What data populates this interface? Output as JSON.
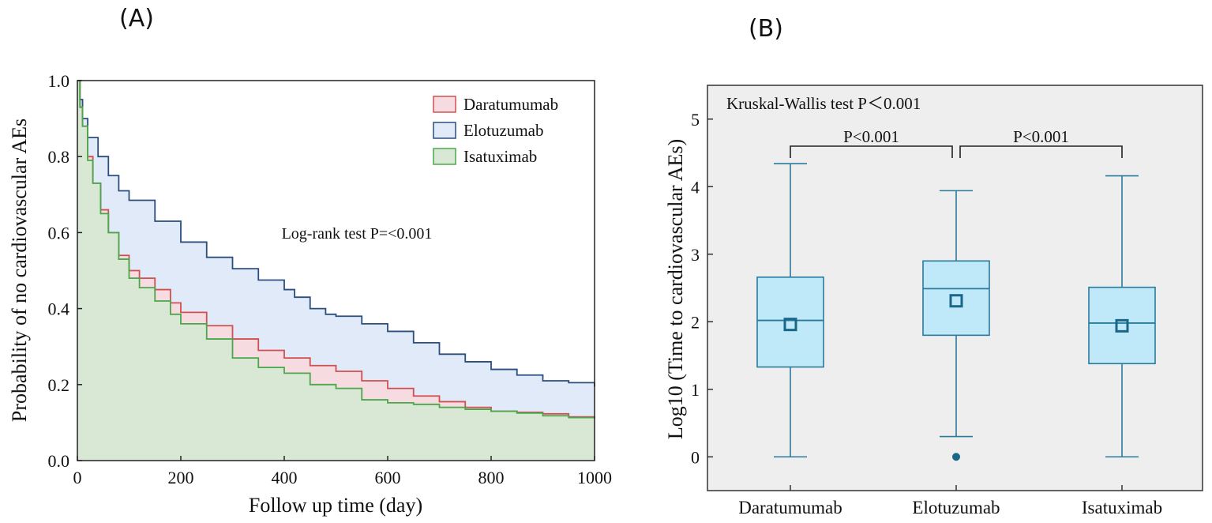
{
  "panels": {
    "a_label": "(A)",
    "b_label": "(B)"
  },
  "chart_data": [
    {
      "type": "line",
      "subtype": "kaplan-meier",
      "xlabel": "Follow up time (day)",
      "ylabel": "Probability of no cardiovascular AEs",
      "xlim": [
        0,
        1000
      ],
      "ylim": [
        0,
        1.0
      ],
      "xticks": [
        "0",
        "200",
        "400",
        "600",
        "800",
        "1000"
      ],
      "yticks": [
        "0.0",
        "0.2",
        "0.4",
        "0.6",
        "0.8",
        "1.0"
      ],
      "annotation": "Log-rank test P=<0.001",
      "legend_position": "top-right",
      "series": [
        {
          "name": "Daratumumab",
          "color": "#d05050",
          "fill": "#f6dbe0",
          "x": [
            0,
            5,
            10,
            20,
            30,
            45,
            60,
            80,
            100,
            120,
            150,
            180,
            200,
            250,
            300,
            350,
            400,
            450,
            500,
            550,
            600,
            650,
            700,
            750,
            800,
            850,
            900,
            950,
            1000
          ],
          "y": [
            1.0,
            0.93,
            0.88,
            0.8,
            0.73,
            0.66,
            0.6,
            0.54,
            0.5,
            0.48,
            0.45,
            0.415,
            0.39,
            0.355,
            0.32,
            0.29,
            0.27,
            0.25,
            0.235,
            0.21,
            0.19,
            0.17,
            0.155,
            0.14,
            0.13,
            0.127,
            0.123,
            0.115,
            0.112
          ]
        },
        {
          "name": "Elotuzumab",
          "color": "#2a4e7e",
          "fill": "#e0eaf8",
          "x": [
            0,
            5,
            10,
            20,
            40,
            60,
            80,
            100,
            150,
            200,
            250,
            300,
            350,
            400,
            420,
            450,
            480,
            500,
            550,
            600,
            650,
            700,
            750,
            800,
            850,
            900,
            950,
            1000
          ],
          "y": [
            1.0,
            0.95,
            0.9,
            0.85,
            0.8,
            0.75,
            0.71,
            0.685,
            0.63,
            0.575,
            0.535,
            0.505,
            0.475,
            0.45,
            0.43,
            0.4,
            0.385,
            0.38,
            0.36,
            0.34,
            0.31,
            0.28,
            0.26,
            0.24,
            0.225,
            0.21,
            0.205,
            0.195
          ]
        },
        {
          "name": "Isatuximab",
          "color": "#4aa84a",
          "fill": "#d8e8d5",
          "x": [
            0,
            5,
            10,
            20,
            30,
            45,
            60,
            80,
            100,
            120,
            150,
            180,
            200,
            250,
            300,
            350,
            400,
            450,
            500,
            550,
            600,
            650,
            700,
            750,
            800,
            850,
            900,
            950,
            1000
          ],
          "y": [
            1.0,
            0.93,
            0.88,
            0.79,
            0.73,
            0.65,
            0.6,
            0.53,
            0.48,
            0.455,
            0.42,
            0.385,
            0.36,
            0.32,
            0.27,
            0.245,
            0.23,
            0.2,
            0.19,
            0.16,
            0.152,
            0.148,
            0.14,
            0.135,
            0.13,
            0.125,
            0.118,
            0.113,
            0.11
          ]
        }
      ]
    },
    {
      "type": "box",
      "ylabel": "Log10 (Time to cardiovascular AEs)",
      "ylim": [
        -0.5,
        5.5
      ],
      "yticks": [
        "0",
        "1",
        "2",
        "3",
        "4",
        "5"
      ],
      "categories": [
        "Daratumumab",
        "Elotuzumab",
        "Isatuximab"
      ],
      "test_annotation": "Kruskal-Wallis test P＜0.001",
      "comparisons": [
        {
          "from": 0,
          "to": 1,
          "label": "P<0.001"
        },
        {
          "from": 1,
          "to": 2,
          "label": "P<0.001"
        }
      ],
      "fill_color": "#bfe8f8",
      "line_color": "#2a7a9c",
      "boxes": [
        {
          "whisker_low": 0,
          "q1": 1.33,
          "median": 2.02,
          "mean": 1.96,
          "q3": 2.66,
          "whisker_high": 4.34,
          "outliers": []
        },
        {
          "whisker_low": 0.3,
          "q1": 1.8,
          "median": 2.49,
          "mean": 2.31,
          "q3": 2.9,
          "whisker_high": 3.94,
          "outliers": [
            0
          ]
        },
        {
          "whisker_low": 0,
          "q1": 1.38,
          "median": 1.98,
          "mean": 1.94,
          "q3": 2.51,
          "whisker_high": 4.16,
          "outliers": []
        }
      ]
    }
  ]
}
